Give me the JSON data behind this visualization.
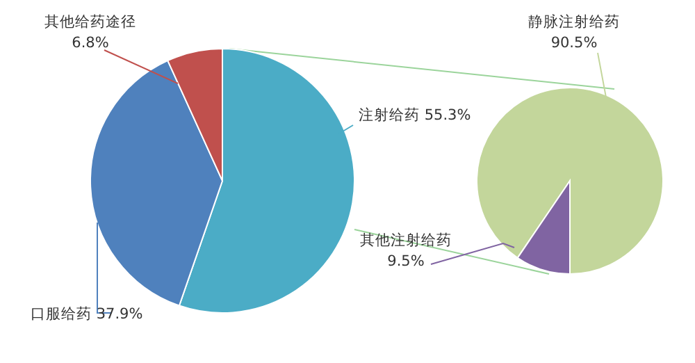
{
  "chart_data": [
    {
      "type": "pie",
      "categories": [
        "注射给药",
        "口服给药",
        "其他给药途径"
      ],
      "values": [
        55.3,
        37.9,
        6.8
      ],
      "colors": [
        "#4bacc6",
        "#4f81bd",
        "#c0504d"
      ],
      "value_labels": [
        "55.3%",
        "37.9%",
        "6.8%"
      ]
    },
    {
      "type": "pie",
      "categories": [
        "静脉注射给药",
        "其他注射给药"
      ],
      "values": [
        90.5,
        9.5
      ],
      "colors": [
        "#c3d69b",
        "#8064a2"
      ],
      "value_labels": [
        "90.5%",
        "9.5%"
      ]
    }
  ]
}
